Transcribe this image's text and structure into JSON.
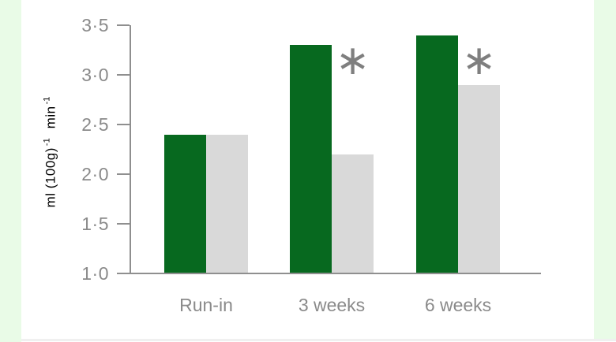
{
  "page": {
    "background_color": "#ffffff",
    "side_strip_color": "#e9fbe7",
    "bottom_rule_color": "#f0f0f0"
  },
  "chart_data": {
    "type": "bar",
    "title": "",
    "categories": [
      "Run-in",
      "3 weeks",
      "6 weeks"
    ],
    "series": [
      {
        "name": "green",
        "color": "#07691f",
        "values": [
          2.4,
          3.3,
          3.4
        ]
      },
      {
        "name": "grey",
        "color": "#d9d9d9",
        "values": [
          2.4,
          2.2,
          2.9
        ]
      }
    ],
    "annotations": [
      {
        "text": "∗",
        "category": "3 weeks",
        "series": "grey"
      },
      {
        "text": "∗",
        "category": "6 weeks",
        "series": "grey"
      }
    ],
    "xlabel": "",
    "ylabel": "ml (100g)⁻¹ min⁻¹",
    "ylabel_parts": [
      "ml (100g)",
      "-1",
      "min",
      "-1"
    ],
    "ylim": [
      1.0,
      3.5
    ],
    "ytick_labels": [
      "3·5",
      "3·0",
      "2·5",
      "2·0",
      "1·5",
      "1·0"
    ],
    "ytick_values": [
      3.5,
      3.0,
      2.5,
      2.0,
      1.5,
      1.0
    ],
    "grid": false,
    "legend": "none",
    "axis_color": "#8f8f8f",
    "text_color": "#8a8a8a",
    "marker_color": "#7f7f7f"
  }
}
